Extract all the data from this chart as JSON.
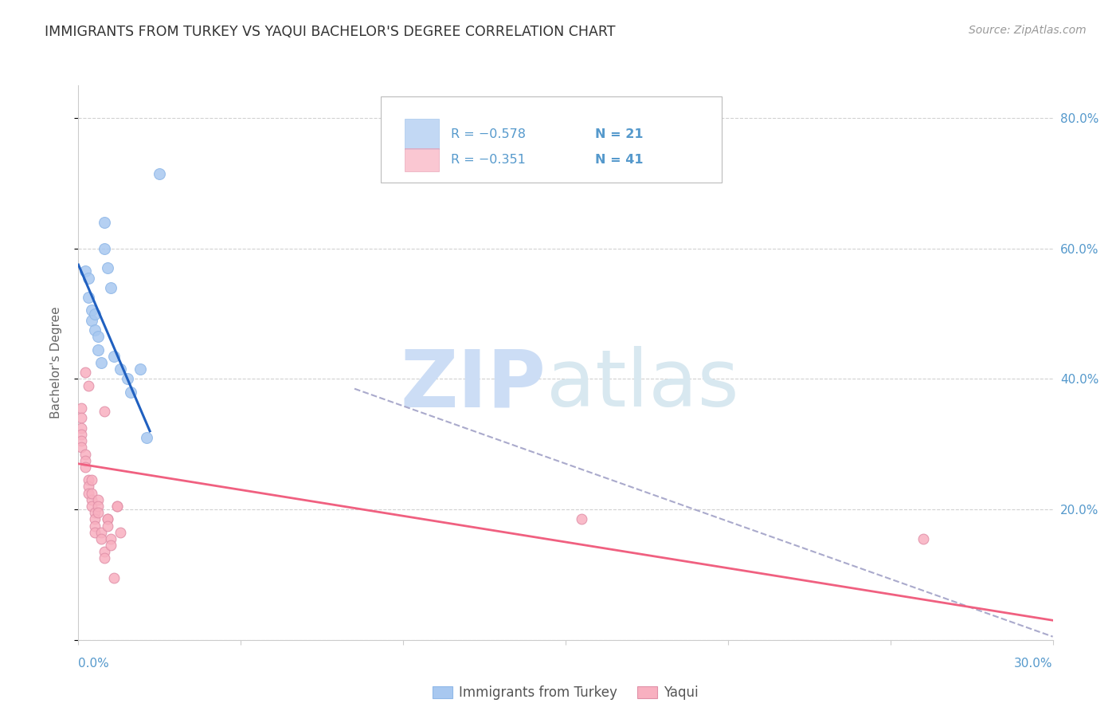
{
  "title": "IMMIGRANTS FROM TURKEY VS YAQUI BACHELOR'S DEGREE CORRELATION CHART",
  "source": "Source: ZipAtlas.com",
  "ylabel": "Bachelor's Degree",
  "watermark_zip": "ZIP",
  "watermark_atlas": "atlas",
  "legend_blue_label": "Immigrants from Turkey",
  "legend_pink_label": "Yaqui",
  "legend_blue_r": "R = −0.578",
  "legend_blue_n": "N = 21",
  "legend_pink_r": "R = −0.351",
  "legend_pink_n": "N = 41",
  "blue_color": "#a8c8f0",
  "pink_color": "#f8b0c0",
  "blue_line_color": "#2060c0",
  "pink_line_color": "#f06080",
  "dashed_line_color": "#aaaacc",
  "grid_color": "#cccccc",
  "axis_color": "#5599cc",
  "title_color": "#333333",
  "source_color": "#999999",
  "x_min": 0.0,
  "x_max": 0.3,
  "y_min": 0.0,
  "y_max": 0.85,
  "blue_points": [
    [
      0.002,
      0.565
    ],
    [
      0.003,
      0.555
    ],
    [
      0.003,
      0.525
    ],
    [
      0.004,
      0.505
    ],
    [
      0.004,
      0.49
    ],
    [
      0.005,
      0.475
    ],
    [
      0.005,
      0.5
    ],
    [
      0.006,
      0.465
    ],
    [
      0.006,
      0.445
    ],
    [
      0.007,
      0.425
    ],
    [
      0.008,
      0.64
    ],
    [
      0.008,
      0.6
    ],
    [
      0.009,
      0.57
    ],
    [
      0.01,
      0.54
    ],
    [
      0.011,
      0.435
    ],
    [
      0.013,
      0.415
    ],
    [
      0.015,
      0.4
    ],
    [
      0.016,
      0.38
    ],
    [
      0.019,
      0.415
    ],
    [
      0.021,
      0.31
    ],
    [
      0.025,
      0.715
    ]
  ],
  "pink_points": [
    [
      0.001,
      0.355
    ],
    [
      0.001,
      0.34
    ],
    [
      0.001,
      0.325
    ],
    [
      0.001,
      0.315
    ],
    [
      0.001,
      0.305
    ],
    [
      0.001,
      0.295
    ],
    [
      0.002,
      0.285
    ],
    [
      0.002,
      0.275
    ],
    [
      0.002,
      0.265
    ],
    [
      0.002,
      0.41
    ],
    [
      0.003,
      0.39
    ],
    [
      0.003,
      0.245
    ],
    [
      0.003,
      0.235
    ],
    [
      0.003,
      0.225
    ],
    [
      0.004,
      0.215
    ],
    [
      0.004,
      0.205
    ],
    [
      0.004,
      0.245
    ],
    [
      0.004,
      0.225
    ],
    [
      0.005,
      0.195
    ],
    [
      0.005,
      0.185
    ],
    [
      0.005,
      0.175
    ],
    [
      0.005,
      0.165
    ],
    [
      0.006,
      0.215
    ],
    [
      0.006,
      0.205
    ],
    [
      0.006,
      0.195
    ],
    [
      0.007,
      0.165
    ],
    [
      0.007,
      0.155
    ],
    [
      0.008,
      0.135
    ],
    [
      0.008,
      0.125
    ],
    [
      0.008,
      0.35
    ],
    [
      0.009,
      0.185
    ],
    [
      0.009,
      0.185
    ],
    [
      0.009,
      0.175
    ],
    [
      0.01,
      0.155
    ],
    [
      0.01,
      0.145
    ],
    [
      0.011,
      0.095
    ],
    [
      0.012,
      0.205
    ],
    [
      0.012,
      0.205
    ],
    [
      0.013,
      0.165
    ],
    [
      0.155,
      0.185
    ],
    [
      0.26,
      0.155
    ]
  ],
  "blue_trendline_x": [
    0.0,
    0.022
  ],
  "blue_trendline_y": [
    0.575,
    0.32
  ],
  "pink_trendline_x": [
    0.0,
    0.3
  ],
  "pink_trendline_y": [
    0.27,
    0.03
  ],
  "dashed_trendline_x": [
    0.085,
    0.3
  ],
  "dashed_trendline_y": [
    0.385,
    0.005
  ],
  "xtick_positions": [
    0.0,
    0.05,
    0.1,
    0.15,
    0.2,
    0.25,
    0.3
  ],
  "ytick_positions": [
    0.0,
    0.2,
    0.4,
    0.6,
    0.8
  ],
  "marker_size": 100,
  "background_color": "#ffffff"
}
